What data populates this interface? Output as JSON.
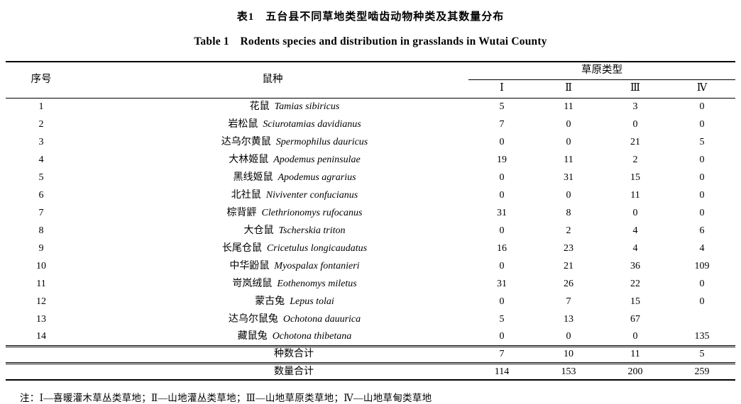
{
  "titles": {
    "cn": "表1　五台县不同草地类型啮齿动物种类及其数量分布",
    "en": "Table 1　Rodents species and distribution in grasslands in Wutai County"
  },
  "table": {
    "col_no": "序号",
    "col_species": "鼠种",
    "col_group": "草原类型",
    "subcols": [
      "Ⅰ",
      "Ⅱ",
      "Ⅲ",
      "Ⅳ"
    ],
    "rows": [
      {
        "no": "1",
        "cn": "花鼠",
        "latin": "Tamias sibiricus",
        "values": [
          "5",
          "11",
          "3",
          "0"
        ]
      },
      {
        "no": "2",
        "cn": "岩松鼠",
        "latin": "Sciurotamias davidianus",
        "values": [
          "7",
          "0",
          "0",
          "0"
        ]
      },
      {
        "no": "3",
        "cn": "达乌尔黄鼠",
        "latin": "Spermophilus dauricus",
        "values": [
          "0",
          "0",
          "21",
          "5"
        ]
      },
      {
        "no": "4",
        "cn": "大林姬鼠",
        "latin": "Apodemus peninsulae",
        "values": [
          "19",
          "11",
          "2",
          "0"
        ]
      },
      {
        "no": "5",
        "cn": "黑线姬鼠",
        "latin": "Apodemus agrarius",
        "values": [
          "0",
          "31",
          "15",
          "0"
        ]
      },
      {
        "no": "6",
        "cn": "北社鼠",
        "latin": "Niviventer confucianus",
        "values": [
          "0",
          "0",
          "11",
          "0"
        ]
      },
      {
        "no": "7",
        "cn": "棕背䶄",
        "latin": "Clethrionomys rufocanus",
        "values": [
          "31",
          "8",
          "0",
          "0"
        ]
      },
      {
        "no": "8",
        "cn": "大仓鼠",
        "latin": "Tscherskia triton",
        "values": [
          "0",
          "2",
          "4",
          "6"
        ]
      },
      {
        "no": "9",
        "cn": "长尾仓鼠",
        "latin": "Cricetulus longicaudatus",
        "values": [
          "16",
          "23",
          "4",
          "4"
        ]
      },
      {
        "no": "10",
        "cn": "中华鼢鼠",
        "latin": "Myospalax fontanieri",
        "values": [
          "0",
          "21",
          "36",
          "109"
        ]
      },
      {
        "no": "11",
        "cn": "岢岚绒鼠",
        "latin": "Eothenomys miletus",
        "values": [
          "31",
          "26",
          "22",
          "0"
        ]
      },
      {
        "no": "12",
        "cn": "蒙古兔",
        "latin": "Lepus tolai",
        "values": [
          "0",
          "7",
          "15",
          "0"
        ]
      },
      {
        "no": "13",
        "cn": "达乌尔鼠兔",
        "latin": "Ochotona dauurica",
        "values": [
          "5",
          "13",
          "67",
          ""
        ]
      },
      {
        "no": "14",
        "cn": "藏鼠兔",
        "latin": "Ochotona thibetana",
        "values": [
          "0",
          "0",
          "0",
          "135"
        ]
      }
    ],
    "totals": [
      {
        "label": "种数合计",
        "values": [
          "7",
          "10",
          "11",
          "5"
        ]
      },
      {
        "label": "数量合计",
        "values": [
          "114",
          "153",
          "200",
          "259"
        ]
      }
    ]
  },
  "note": "注：Ⅰ—喜暖灌木草丛类草地；Ⅱ—山地灌丛类草地；Ⅲ—山地草原类草地；Ⅳ—山地草甸类草地"
}
